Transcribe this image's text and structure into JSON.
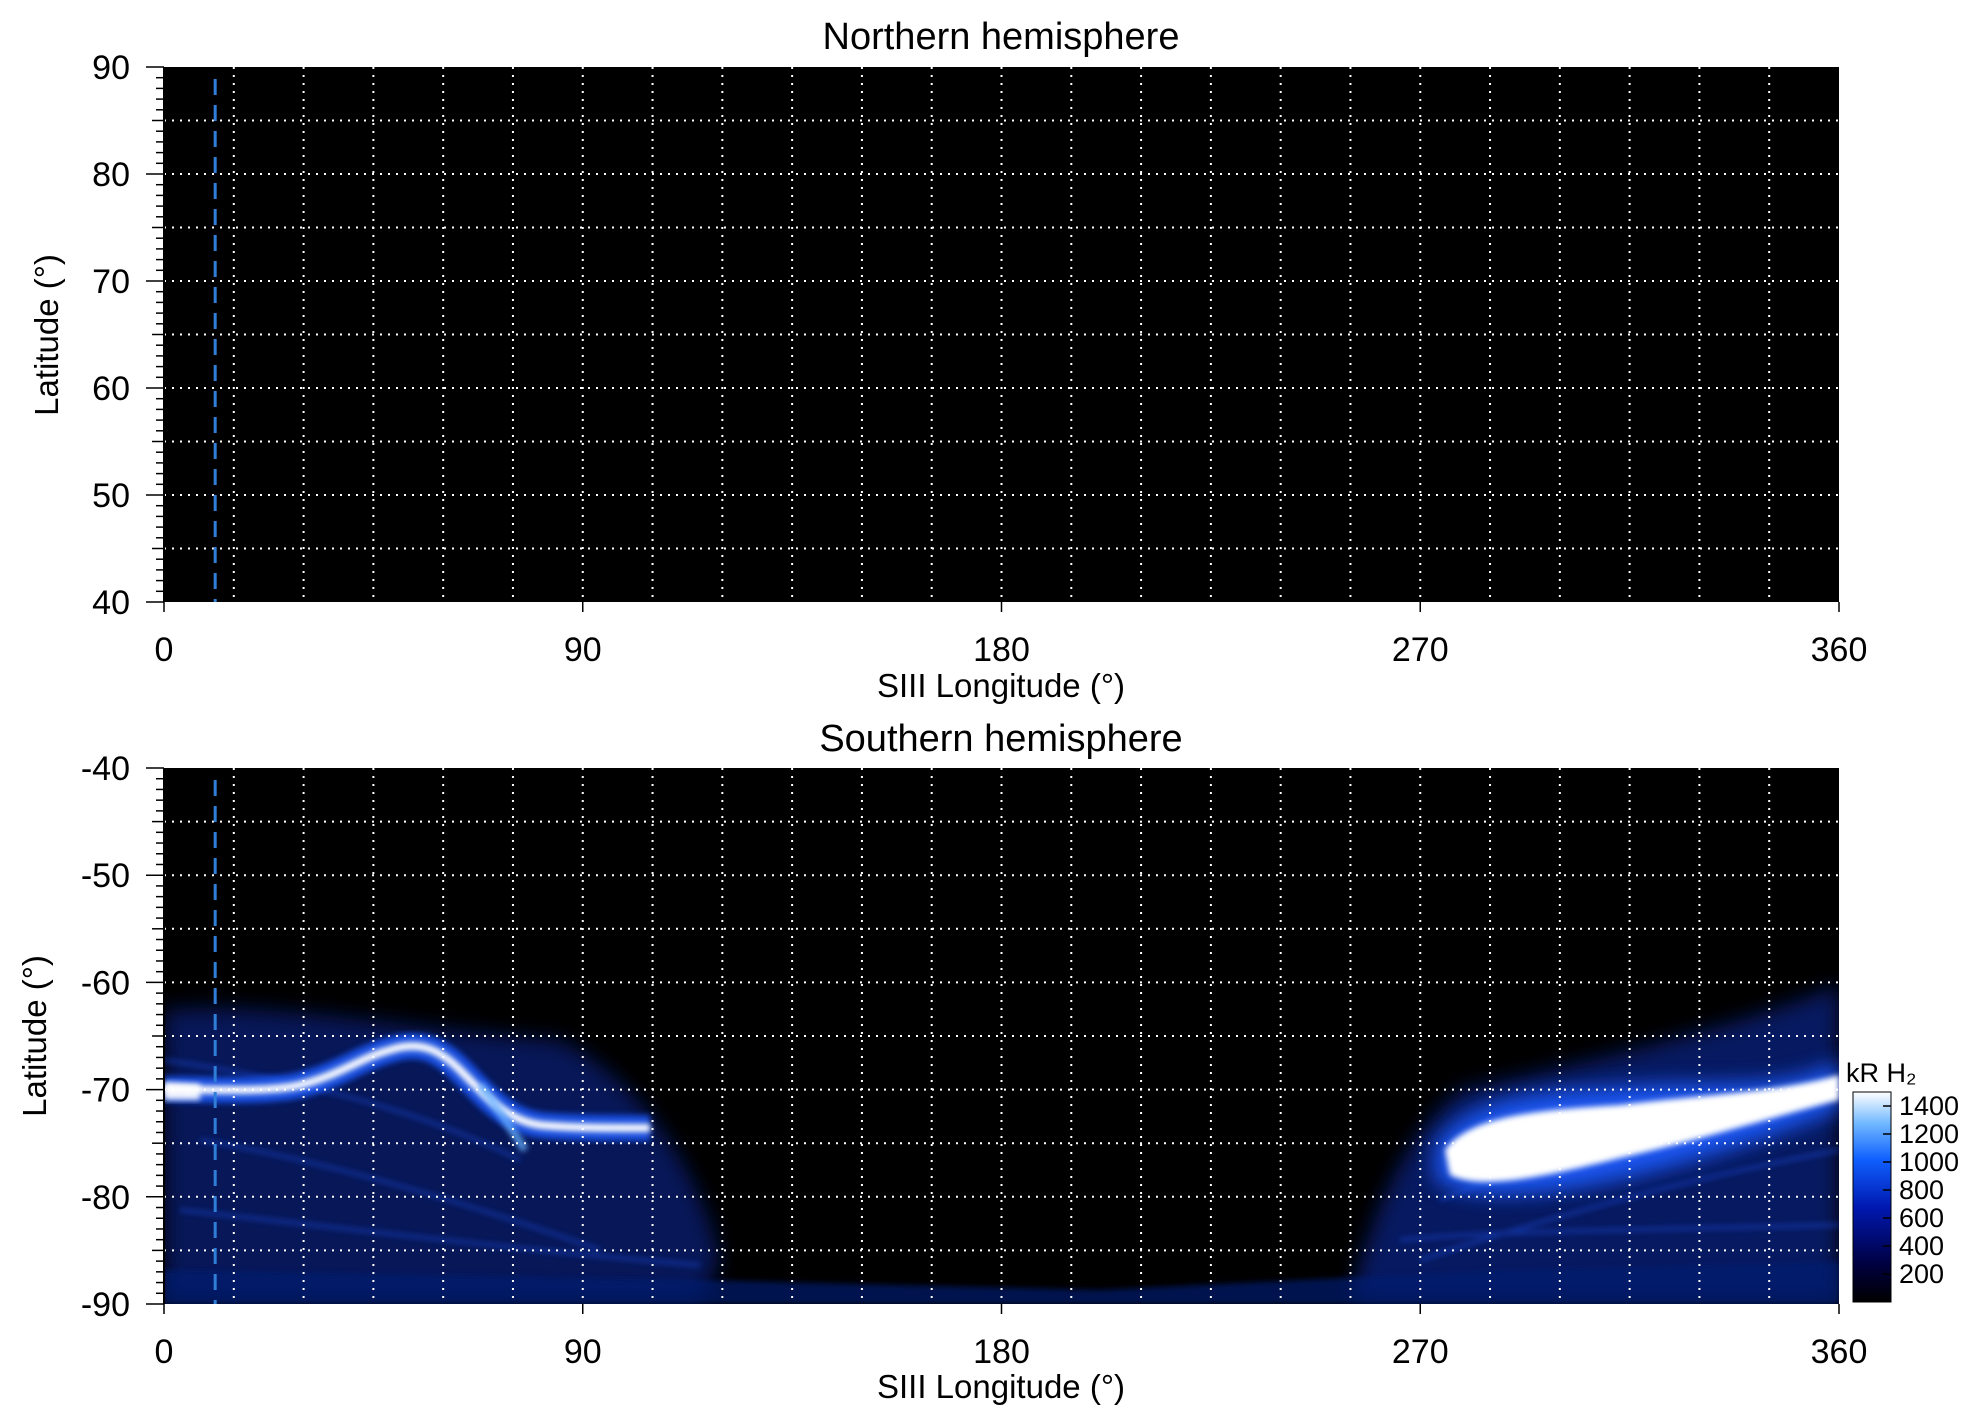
{
  "chart_data": [
    {
      "type": "heatmap",
      "title": "Northern hemisphere",
      "xlabel": "SIII Longitude (°)",
      "ylabel": "Latitude (°)",
      "xlim": [
        0,
        360
      ],
      "ylim": [
        40,
        90
      ],
      "xticks": [
        "0",
        "90",
        "180",
        "270",
        "360"
      ],
      "yticks": [
        "40",
        "50",
        "60",
        "70",
        "80",
        "90"
      ],
      "grid": true,
      "marker_longitude": 11,
      "marker_color": "#2f7fd8",
      "background": "#000000",
      "emission": []
    },
    {
      "type": "heatmap",
      "title": "Southern hemisphere",
      "xlabel": "SIII Longitude (°)",
      "ylabel": "Latitude (°)",
      "xlim": [
        0,
        360
      ],
      "ylim": [
        -90,
        -40
      ],
      "xticks": [
        "0",
        "90",
        "180",
        "270",
        "360"
      ],
      "yticks": [
        "-40",
        "-50",
        "-60",
        "-70",
        "-80",
        "-90"
      ],
      "grid": true,
      "marker_longitude": 11,
      "marker_color": "#2f7fd8",
      "background": "#000000",
      "emission": [
        {
          "feature": "main-oval-west",
          "points": [
            [
              0,
              -70.0
            ],
            [
              10,
              -70.0
            ],
            [
              20,
              -70.0
            ],
            [
              30,
              -69.5
            ],
            [
              40,
              -68.0
            ],
            [
              50,
              -67.0
            ],
            [
              58,
              -67.5
            ],
            [
              65,
              -69.0
            ],
            [
              70,
              -71.0
            ],
            [
              75,
              -73.0
            ],
            [
              80,
              -73.5
            ],
            [
              88,
              -74.0
            ],
            [
              95,
              -74.0
            ]
          ],
          "intensity_kR": 1200
        },
        {
          "feature": "main-oval-east",
          "points": [
            [
              285,
              -77.5
            ],
            [
              300,
              -77.0
            ],
            [
              315,
              -75.5
            ],
            [
              330,
              -74.0
            ],
            [
              345,
              -72.5
            ],
            [
              360,
              -71.0
            ]
          ],
          "intensity_kR": 1400
        },
        {
          "feature": "diffuse-west",
          "lon": [
            0,
            110
          ],
          "lat": [
            -90,
            -63
          ],
          "intensity_kR": 350
        },
        {
          "feature": "diffuse-east",
          "lon": [
            270,
            360
          ],
          "lat": [
            -90,
            -64
          ],
          "intensity_kR": 400
        }
      ],
      "colorbar": {
        "label": "kR H₂",
        "ticks": [
          "200",
          "400",
          "600",
          "800",
          "1000",
          "1200",
          "1400"
        ],
        "range": [
          0,
          1500
        ]
      }
    }
  ]
}
